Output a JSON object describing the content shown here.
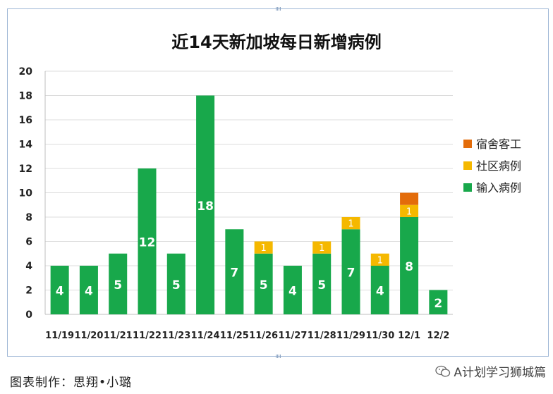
{
  "chart_data": {
    "type": "bar",
    "stacked": true,
    "title": "近14天新加坡每日新增病例",
    "categories": [
      "11/19",
      "11/20",
      "11/21",
      "11/22",
      "11/23",
      "11/24",
      "11/25",
      "11/26",
      "11/27",
      "11/28",
      "11/29",
      "11/30",
      "12/1",
      "12/2"
    ],
    "series": [
      {
        "name": "输入病例",
        "color": "#18a84b",
        "values": [
          4,
          4,
          5,
          12,
          5,
          18,
          7,
          5,
          4,
          5,
          7,
          4,
          8,
          2
        ]
      },
      {
        "name": "社区病例",
        "color": "#f5b800",
        "values": [
          0,
          0,
          0,
          0,
          0,
          0,
          0,
          1,
          0,
          1,
          1,
          1,
          1,
          0
        ]
      },
      {
        "name": "宿舍客工",
        "color": "#e36c0a",
        "values": [
          0,
          0,
          0,
          0,
          0,
          0,
          0,
          0,
          0,
          0,
          0,
          0,
          1,
          0
        ]
      }
    ],
    "ylim": [
      0,
      20
    ],
    "yticks": [
      0,
      2,
      4,
      6,
      8,
      10,
      12,
      14,
      16,
      18,
      20
    ],
    "legend": [
      "宿舍客工",
      "社区病例",
      "输入病例"
    ],
    "legend_position": "right",
    "grid": true
  },
  "footer": {
    "credit": "图表制作：思翔•小璐",
    "watermark": "A计划学习狮城篇"
  }
}
